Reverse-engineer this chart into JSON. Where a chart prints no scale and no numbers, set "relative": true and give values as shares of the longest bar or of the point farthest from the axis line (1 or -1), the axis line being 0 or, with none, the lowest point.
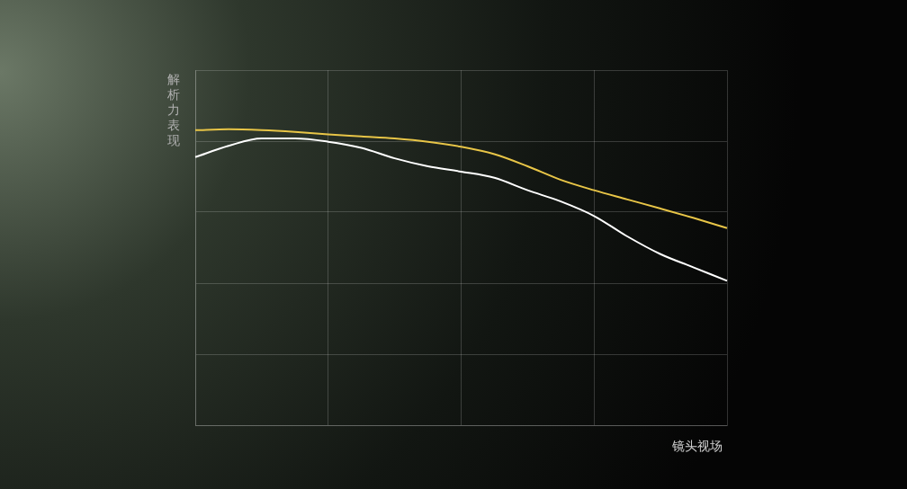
{
  "chart_data": {
    "type": "line",
    "relative": true,
    "ylabel": "解析力表现",
    "xlabel": "镜头视场",
    "grid": true,
    "marker": "none",
    "line_style": "solid",
    "categories": [
      null,
      null,
      null,
      null,
      null,
      null,
      null,
      null,
      null,
      null,
      null,
      null,
      null,
      null,
      null,
      null,
      null
    ],
    "series": [
      {
        "color": "#e8c547",
        "values": [
          0.997,
          1,
          0.997,
          0.991,
          0.983,
          0.976,
          0.969,
          0.958,
          0.941,
          0.916,
          0.875,
          0.829,
          0.794,
          0.763,
          0.732,
          0.7,
          0.666
        ]
      },
      {
        "color": "#ffffff",
        "values": [
          0.906,
          0.944,
          0.969,
          0.969,
          0.958,
          0.937,
          0.902,
          0.875,
          0.857,
          0.836,
          0.794,
          0.756,
          0.707,
          0.638,
          0.578,
          0.533,
          0.488
        ]
      }
    ]
  }
}
